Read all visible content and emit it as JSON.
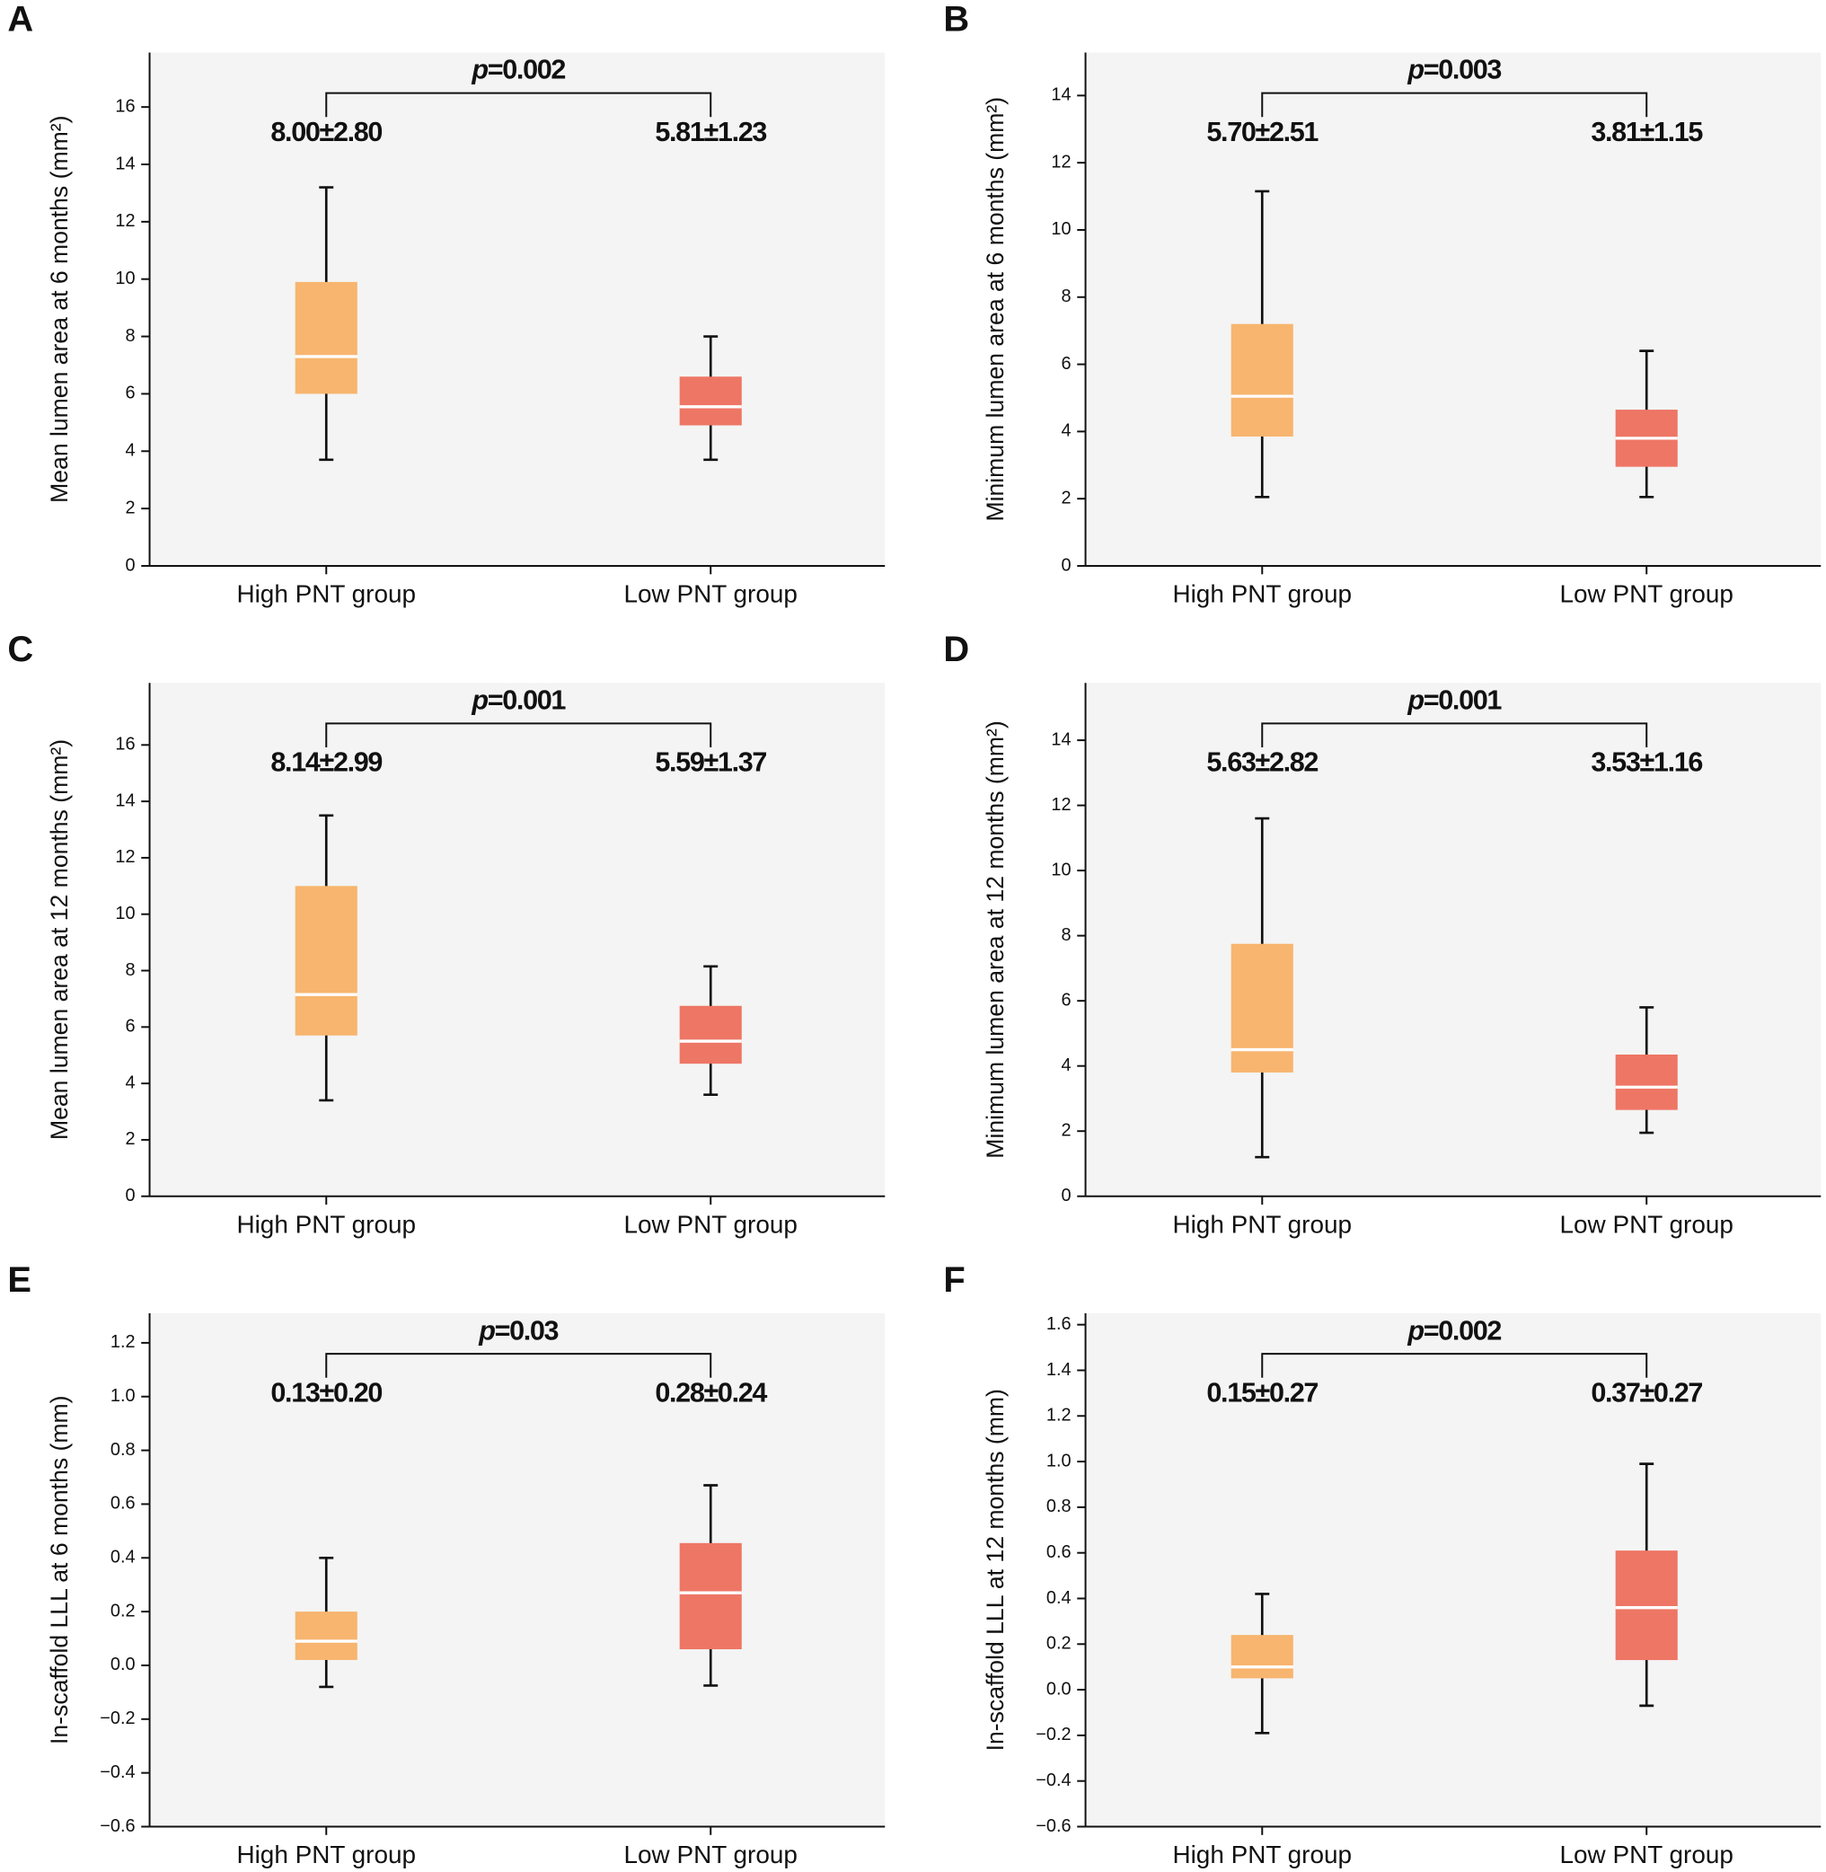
{
  "chart_data": [
    {
      "type": "box",
      "panel": "A",
      "ylabel": "Mean lumen area at 6 months (mm²)",
      "categories": [
        "High PNT group",
        "Low PNT group"
      ],
      "colors": [
        "#f7b56f",
        "#ee7665"
      ],
      "boxes": [
        {
          "low": 3.7,
          "q1": 6.0,
          "median": 7.3,
          "q3": 9.9,
          "high": 13.2
        },
        {
          "low": 3.7,
          "q1": 4.9,
          "median": 5.55,
          "q3": 6.6,
          "high": 8.0
        }
      ],
      "stats": [
        "8.00±2.80",
        "5.81±1.23"
      ],
      "p_value": "p=0.002",
      "ylim": [
        0,
        17.9
      ],
      "yticks": [
        0,
        2,
        4,
        6,
        8,
        10,
        12,
        14,
        16
      ]
    },
    {
      "type": "box",
      "panel": "B",
      "ylabel": "Minimum lumen area at 6 months (mm²)",
      "categories": [
        "High PNT group",
        "Low PNT group"
      ],
      "colors": [
        "#f7b56f",
        "#ee7665"
      ],
      "boxes": [
        {
          "low": 2.05,
          "q1": 3.85,
          "median": 5.05,
          "q3": 7.2,
          "high": 11.15
        },
        {
          "low": 2.05,
          "q1": 2.95,
          "median": 3.8,
          "q3": 4.65,
          "high": 6.4
        }
      ],
      "stats": [
        "5.70±2.51",
        "3.81±1.15"
      ],
      "p_value": "p=0.003",
      "ylim": [
        0,
        15.28
      ],
      "yticks": [
        0,
        2,
        4,
        6,
        8,
        10,
        12,
        14
      ]
    },
    {
      "type": "box",
      "panel": "C",
      "ylabel": "Mean lumen area at 12 months (mm²)",
      "categories": [
        "High PNT group",
        "Low PNT group"
      ],
      "colors": [
        "#f7b56f",
        "#ee7665"
      ],
      "boxes": [
        {
          "low": 3.4,
          "q1": 5.7,
          "median": 7.15,
          "q3": 11.0,
          "high": 13.5
        },
        {
          "low": 3.6,
          "q1": 4.7,
          "median": 5.5,
          "q3": 6.75,
          "high": 8.15
        }
      ],
      "stats": [
        "8.14±2.99",
        "5.59±1.37"
      ],
      "p_value": "p=0.001",
      "ylim": [
        0,
        18.2
      ],
      "yticks": [
        0,
        2,
        4,
        6,
        8,
        10,
        12,
        14,
        16
      ]
    },
    {
      "type": "box",
      "panel": "D",
      "ylabel": "Minimum lumen area at 12 months (mm²)",
      "categories": [
        "High PNT group",
        "Low PNT group"
      ],
      "colors": [
        "#f7b56f",
        "#ee7665"
      ],
      "boxes": [
        {
          "low": 1.2,
          "q1": 3.8,
          "median": 4.5,
          "q3": 7.75,
          "high": 11.6
        },
        {
          "low": 1.95,
          "q1": 2.65,
          "median": 3.35,
          "q3": 4.35,
          "high": 5.8
        }
      ],
      "stats": [
        "5.63±2.82",
        "3.53±1.16"
      ],
      "p_value": "p=0.001",
      "ylim": [
        0,
        15.76
      ],
      "yticks": [
        0,
        2,
        4,
        6,
        8,
        10,
        12,
        14
      ]
    },
    {
      "type": "box",
      "panel": "E",
      "ylabel": "In-scaffold LLL at 6 months (mm)",
      "categories": [
        "High PNT group",
        "Low PNT group"
      ],
      "colors": [
        "#f7b56f",
        "#ee7665"
      ],
      "boxes": [
        {
          "low": -0.08,
          "q1": 0.02,
          "median": 0.09,
          "q3": 0.2,
          "high": 0.4
        },
        {
          "low": -0.075,
          "q1": 0.06,
          "median": 0.27,
          "q3": 0.455,
          "high": 0.67
        }
      ],
      "stats": [
        "0.13±0.20",
        "0.28±0.24"
      ],
      "p_value": "p=0.03",
      "ylim": [
        -0.6,
        1.31
      ],
      "yticks": [
        {
          "value": -0.6,
          "label": "−0.6"
        },
        {
          "value": -0.4,
          "label": "−0.4"
        },
        {
          "value": -0.2,
          "label": "−0.2"
        },
        {
          "value": 0,
          "label": "0.0"
        },
        0.2,
        0.4,
        0.6,
        0.8,
        {
          "value": 1,
          "label": "1.0"
        },
        1.2
      ]
    },
    {
      "type": "box",
      "panel": "F",
      "ylabel": "In-scaffold LLL at 12 months (mm)",
      "categories": [
        "High PNT group",
        "Low PNT group"
      ],
      "colors": [
        "#f7b56f",
        "#ee7665"
      ],
      "boxes": [
        {
          "low": -0.19,
          "q1": 0.05,
          "median": 0.1,
          "q3": 0.24,
          "high": 0.42
        },
        {
          "low": -0.07,
          "q1": 0.13,
          "median": 0.36,
          "q3": 0.61,
          "high": 0.99
        }
      ],
      "stats": [
        "0.15±0.27",
        "0.37±0.27"
      ],
      "p_value": "p=0.002",
      "ylim": [
        -0.6,
        1.65
      ],
      "yticks": [
        {
          "value": -0.6,
          "label": "−0.6"
        },
        {
          "value": -0.4,
          "label": "−0.4"
        },
        {
          "value": -0.2,
          "label": "−0.2"
        },
        {
          "value": 0,
          "label": "0.0"
        },
        0.2,
        0.4,
        0.6,
        0.8,
        {
          "value": 1,
          "label": "1.0"
        },
        1.2,
        1.4,
        1.6
      ]
    }
  ]
}
